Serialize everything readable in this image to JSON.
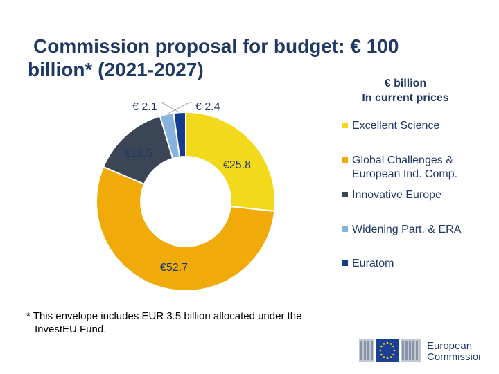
{
  "title": {
    "line1": "Commission proposal for budget: € 100",
    "line2": "billion* (2021-2027)"
  },
  "units": {
    "line1": "€ billion",
    "line2": "In current prices"
  },
  "chart_data": {
    "type": "pie",
    "donut": true,
    "title": "Commission proposal for budget: € 100 billion* (2021-2027)",
    "unit_note": "€ billion, In current prices",
    "legend_position": "right",
    "series": [
      {
        "name": "Excellent Science",
        "value": 25.8,
        "label": "€25.8",
        "color": "#f2d91b"
      },
      {
        "name": "Global Challenges & European Ind. Comp.",
        "value": 52.7,
        "label": "€52.7",
        "color": "#f0ab0a"
      },
      {
        "name": "Innovative Europe",
        "value": 13.5,
        "label": "€13.5",
        "color": "#3a4656"
      },
      {
        "name": "Widening Part. & ERA",
        "value": 2.4,
        "label": "€ 2.4",
        "color": "#86b2dd"
      },
      {
        "name": "Euratom",
        "value": 2.1,
        "label": "€ 2.1",
        "color": "#143b8c"
      }
    ]
  },
  "legend": {
    "items": [
      {
        "line1": "Excellent Science",
        "line2": "",
        "color": "#f2d91b"
      },
      {
        "line1": "Global Challenges &",
        "line2": "European Ind. Comp.",
        "color": "#f0ab0a"
      },
      {
        "line1": "Innovative Europe",
        "line2": "",
        "color": "#3a4656"
      },
      {
        "line1": "Widening Part. & ERA",
        "line2": "",
        "color": "#86b2dd"
      },
      {
        "line1": "Euratom",
        "line2": "",
        "color": "#143b8c"
      }
    ]
  },
  "footnote": {
    "line1": "* This envelope includes EUR 3.5 billion allocated under the",
    "line2": "InvestEU Fund."
  },
  "logo": {
    "line1": "European",
    "line2": "Commission"
  }
}
